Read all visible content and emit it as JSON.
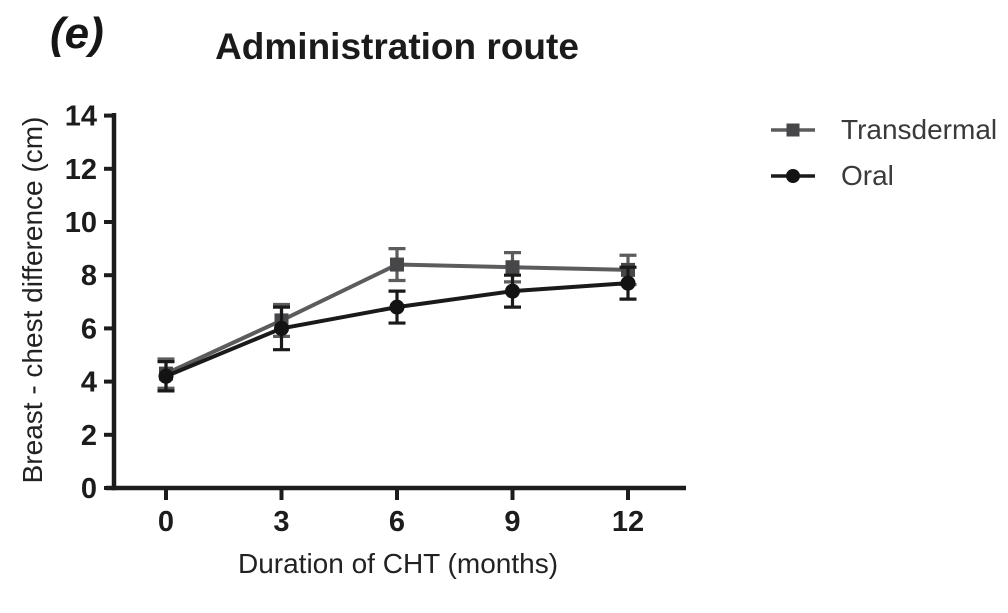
{
  "panel_label": "(e)",
  "colors": {
    "background": "#ffffff",
    "axis": "#1c1c1c",
    "title_text": "#1b1b1b",
    "legend_text": "#3a3a3a"
  },
  "chart_data": {
    "type": "line",
    "title": "Administration route",
    "xlabel": "Duration of CHT (months)",
    "ylabel": "Breast - chest difference (cm)",
    "x": [
      0,
      3,
      6,
      9,
      12
    ],
    "xticks": [
      "0",
      "3",
      "6",
      "9",
      "12"
    ],
    "yticks": [
      "0",
      "2",
      "4",
      "6",
      "8",
      "10",
      "12",
      "14"
    ],
    "xlim": [
      -1.55,
      13.5
    ],
    "ylim": [
      0,
      14
    ],
    "grid": false,
    "error_bars": true,
    "legend_position": "right",
    "series": [
      {
        "name": "Transdermal",
        "marker": "square",
        "color": "#5c5c5e",
        "marker_color": "#474749",
        "values": [
          4.3,
          6.3,
          8.4,
          8.3,
          8.2
        ],
        "errors": [
          0.55,
          0.6,
          0.6,
          0.55,
          0.55
        ]
      },
      {
        "name": "Oral",
        "marker": "circle",
        "color": "#1a1a1a",
        "marker_color": "#131313",
        "values": [
          4.2,
          6.0,
          6.8,
          7.4,
          7.7
        ],
        "errors": [
          0.55,
          0.8,
          0.6,
          0.6,
          0.6
        ]
      }
    ]
  }
}
